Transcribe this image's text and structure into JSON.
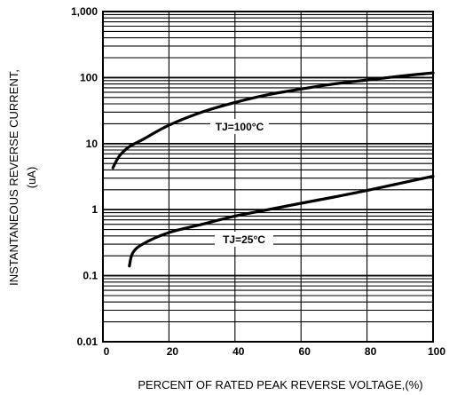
{
  "chart_data": {
    "type": "line",
    "title": "",
    "xlabel": "PERCENT OF RATED PEAK REVERSE VOLTAGE,(%)",
    "ylabel_line1": "INSTANTANEOUS  REVERSE  CURRENT,",
    "ylabel_line2": "(uA)",
    "xlim": [
      0,
      100
    ],
    "ylim": [
      0.01,
      1000
    ],
    "yscale": "log",
    "grid": true,
    "x_ticks": [
      "0",
      "20",
      "40",
      "60",
      "80",
      "100"
    ],
    "y_ticks": [
      "0.01",
      "0.1",
      "1",
      "10",
      "100",
      "1,000"
    ],
    "series": [
      {
        "name": "TJ=100°C",
        "x": [
          3,
          5,
          8,
          12,
          20,
          30,
          40,
          50,
          60,
          70,
          80,
          90,
          100
        ],
        "y": [
          4.3,
          6.5,
          9,
          11.5,
          19,
          30,
          42,
          55,
          67,
          80,
          92,
          105,
          118
        ]
      },
      {
        "name": "TJ=25°C",
        "x": [
          8,
          9,
          12,
          20,
          30,
          40,
          50,
          60,
          70,
          80,
          90,
          100
        ],
        "y": [
          0.14,
          0.22,
          0.3,
          0.45,
          0.6,
          0.8,
          1.0,
          1.25,
          1.55,
          1.95,
          2.5,
          3.2
        ]
      }
    ]
  }
}
